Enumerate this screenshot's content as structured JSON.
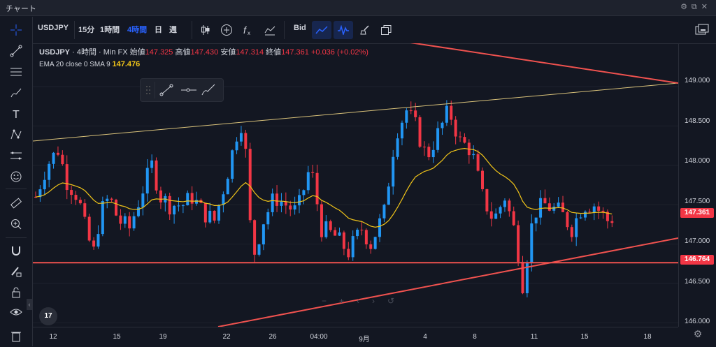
{
  "window": {
    "title": "チャート"
  },
  "toolbar": {
    "symbol": "USDJPY",
    "intervals": [
      "15分",
      "1時間",
      "4時間",
      "日",
      "週"
    ],
    "active_interval": "4時間",
    "price_type": "Bid"
  },
  "legend": {
    "symbol": "USDJPY",
    "interval": "4時間",
    "source": "Min FX",
    "open_label": "始値",
    "open": "147.325",
    "high_label": "高値",
    "high": "147.430",
    "low_label": "安値",
    "low": "147.314",
    "close_label": "終値",
    "close": "147.361",
    "change": "+0.036 (+0.02%)",
    "ema_label": "EMA 20 close 0 SMA 9",
    "ema_value": "147.476"
  },
  "price_axis": {
    "ticks": [
      "149.000",
      "148.500",
      "148.000",
      "147.500",
      "147.000",
      "146.500",
      "146.000"
    ],
    "current_price": "147.361",
    "line_price": "146.764"
  },
  "time_axis": {
    "labels": [
      "12",
      "15",
      "19",
      "22",
      "26",
      "04:00",
      "9月",
      "4",
      "8",
      "11",
      "15",
      "18"
    ]
  },
  "colors": {
    "up": "#2196f3",
    "down": "#f23645",
    "ema": "#f0c419",
    "trendline": "#d9c27a",
    "triangle": "#f0524f",
    "background": "#131722"
  },
  "chart_data": {
    "type": "candlestick",
    "ema_period": 20,
    "horizontal_line": 146.764,
    "current_close": 147.361,
    "ylim": [
      145.95,
      149.55
    ]
  },
  "icons": {
    "left_tools": [
      "crosshair-icon",
      "trend-line-icon",
      "horizontal-lines-icon",
      "brush-icon",
      "text-icon",
      "pattern-icon",
      "measure-lines-icon",
      "emoji-icon",
      "ruler-icon",
      "zoom-in-icon",
      "magnet-icon",
      "pencil-lock-icon",
      "lock-icon",
      "eye-icon",
      "trash-icon"
    ]
  }
}
